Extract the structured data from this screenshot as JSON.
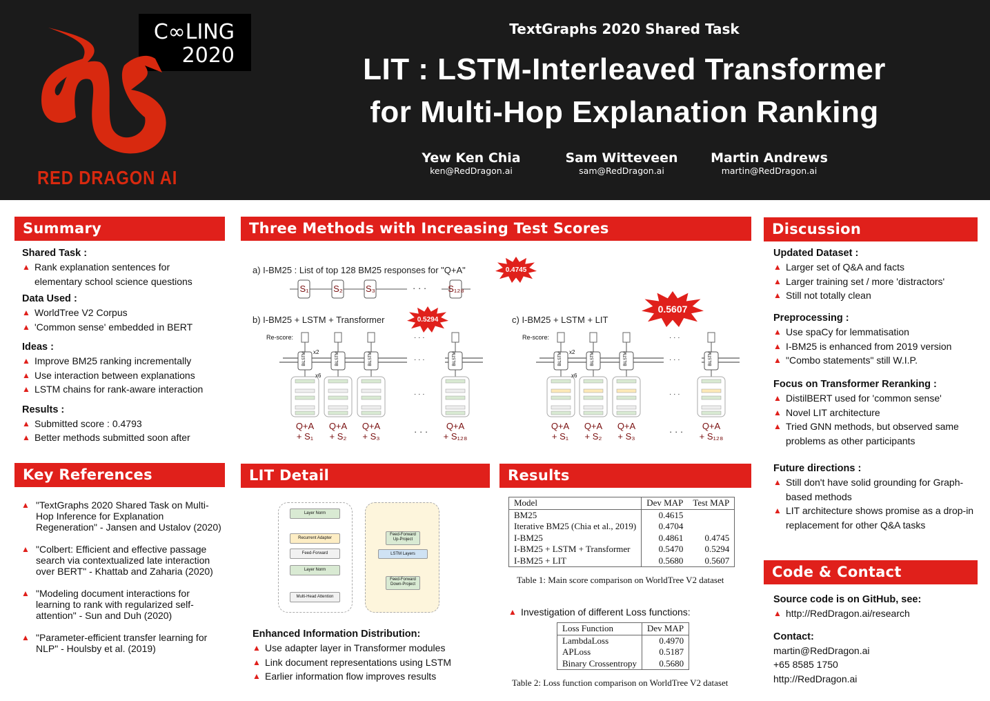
{
  "header": {
    "conference": "C∞LING",
    "conference_year": "2020",
    "brand": "RED DRAGON AI",
    "subtitle": "TextGraphs 2020 Shared Task",
    "title_line1": "LIT : LSTM-Interleaved Transformer",
    "title_line2": "for Multi-Hop Explanation Ranking",
    "authors": [
      {
        "name": "Yew Ken Chia",
        "email": "ken@RedDragon.ai"
      },
      {
        "name": "Sam Witteveen",
        "email": "sam@RedDragon.ai"
      },
      {
        "name": "Martin Andrews",
        "email": "martin@RedDragon.ai"
      }
    ],
    "accent_color": "#e0201b"
  },
  "summary": {
    "title": "Summary",
    "groups": [
      {
        "heading": "Shared Task :",
        "items": [
          "Rank explanation sentences for elementary school science questions"
        ]
      },
      {
        "heading": "Data Used :",
        "items": [
          "WorldTree V2 Corpus",
          "'Common sense' embedded in BERT"
        ]
      },
      {
        "heading": "Ideas :",
        "items": [
          "Improve BM25 ranking incrementally",
          "Use interaction between explanations",
          "LSTM chains for rank-aware interaction"
        ]
      },
      {
        "heading": "Results :",
        "items": [
          "Submitted score : 0.4793",
          "Better methods submitted soon after"
        ]
      }
    ]
  },
  "references": {
    "title": "Key References",
    "items": [
      "\"TextGraphs 2020 Shared Task on Multi-Hop Inference for Explanation Regeneration\" - Jansen and Ustalov (2020)",
      "\"Colbert: Efficient and effective passage search via contextualized late interaction over BERT\" - Khattab and Zaharia (2020)",
      "\"Modeling document interactions for learning to rank with regularized self-attention\" - Sun and Duh (2020)",
      "\"Parameter-efficient transfer learning for NLP\" - Houlsby et al. (2019)"
    ]
  },
  "methods": {
    "title": "Three Methods with Increasing Test Scores",
    "a_label": "a)  I-BM25 : List of top 128 BM25 responses for \"Q+A\"",
    "a_score": "0.4745",
    "b_label": "b)  I-BM25 + LSTM + Transformer",
    "b_score": "0.5294",
    "c_label": "c)  I-BM25 + LSTM + LIT",
    "c_score": "0.5607",
    "rescore": "Re-score:",
    "bilstm": "BiLSTM",
    "x2": "x2",
    "x6": "x6",
    "dots": "· · ·",
    "qa": "Q+A",
    "s_labels": [
      "S₁",
      "S₂",
      "S₃",
      "S₁₂₈"
    ],
    "s_plus": [
      "+ S₁",
      "+ S₂",
      "+ S₃",
      "+ S₁₂₈"
    ]
  },
  "lit_detail": {
    "title": "LIT Detail",
    "left_blocks": [
      "Layer Norm",
      "Recurrent Adapter",
      "Feed-Forward",
      "Layer Norm",
      "Multi-Head Attention"
    ],
    "right_blocks": [
      "Feed-Forward Up-Project",
      "LSTM Layers",
      "Feed-Forward Down-Project"
    ],
    "heading": "Enhanced Information Distribution:",
    "items": [
      "Use adapter layer in Transformer modules",
      "Link document representations using LSTM",
      "Earlier information flow improves results"
    ]
  },
  "results": {
    "title": "Results",
    "table1": {
      "columns": [
        "Model",
        "Dev MAP",
        "Test MAP"
      ],
      "rows": [
        [
          "BM25",
          "0.4615",
          ""
        ],
        [
          "Iterative BM25 (Chia et al., 2019)",
          "0.4704",
          ""
        ],
        [
          "I-BM25",
          "0.4861",
          "0.4745"
        ],
        [
          "I-BM25 + LSTM + Transformer",
          "0.5470",
          "0.5294"
        ],
        [
          "I-BM25 + LIT",
          "0.5680",
          "0.5607"
        ]
      ],
      "caption": "Table 1: Main score comparison on WorldTree V2 dataset"
    },
    "loss_note": "Investigation of different Loss functions:",
    "table2": {
      "columns": [
        "Loss Function",
        "Dev MAP"
      ],
      "rows": [
        [
          "LambdaLoss",
          "0.4970"
        ],
        [
          "APLoss",
          "0.5187"
        ],
        [
          "Binary Crossentropy",
          "0.5680"
        ]
      ],
      "caption": "Table 2: Loss function comparison on WorldTree V2 dataset"
    }
  },
  "discussion": {
    "title": "Discussion",
    "groups": [
      {
        "heading": "Updated Dataset :",
        "items": [
          "Larger set of Q&A and facts",
          "Larger training set / more 'distractors'",
          "Still not totally clean"
        ]
      },
      {
        "heading": "Preprocessing :",
        "items": [
          "Use spaCy for lemmatisation",
          "I-BM25 is enhanced from 2019 version",
          "\"Combo statements\" still W.I.P."
        ]
      },
      {
        "heading": "Focus on Transformer Reranking :",
        "items": [
          "DistilBERT used for 'common sense'",
          "Novel LIT architecture",
          "Tried GNN methods, but observed same problems as other participants"
        ]
      },
      {
        "heading": "Future directions :",
        "items": [
          "Still don't have solid grounding for Graph-based methods",
          "LIT architecture shows promise as a drop-in replacement for other Q&A tasks"
        ]
      }
    ]
  },
  "contact": {
    "title": "Code & Contact",
    "source_heading": "Source code is on GitHub, see:",
    "source_link": "http://RedDragon.ai/research",
    "contact_heading": "Contact:",
    "email": "martin@RedDragon.ai",
    "phone": "+65 8585 1750",
    "website": "http://RedDragon.ai"
  }
}
